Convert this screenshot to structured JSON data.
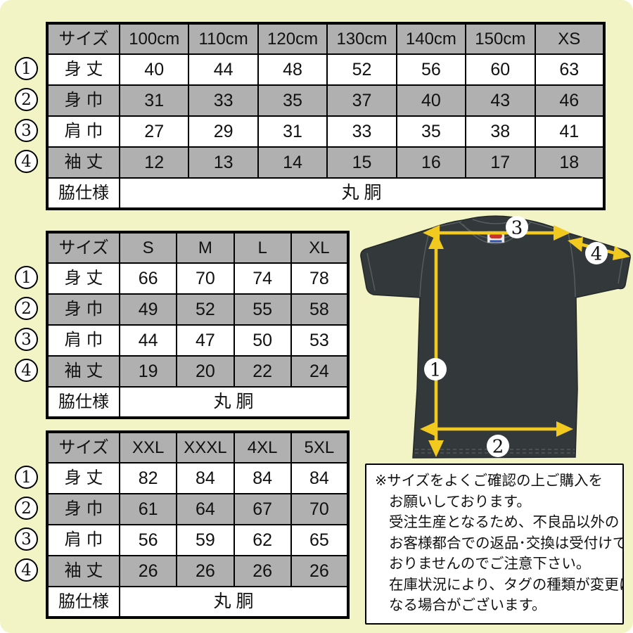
{
  "colors": {
    "background": "#f3f4c6",
    "table_gray": "#b0b0b0",
    "border": "#000000",
    "shirt": "#33383b",
    "arrow_yellow": "#f1c91f",
    "marker_fill": "#ffffff",
    "tag_red": "#c8342c",
    "tag_blue": "#2e4fae"
  },
  "tables": [
    {
      "name": "size-table-kids",
      "header": [
        "サイズ",
        "100cm",
        "110cm",
        "120cm",
        "130cm",
        "140cm",
        "150cm",
        "XS"
      ],
      "rows": [
        {
          "marker": "1",
          "label": "身 丈",
          "values": [
            "40",
            "44",
            "48",
            "52",
            "56",
            "60",
            "63"
          ]
        },
        {
          "marker": "2",
          "label": "身 巾",
          "values": [
            "31",
            "33",
            "35",
            "37",
            "40",
            "43",
            "46"
          ]
        },
        {
          "marker": "3",
          "label": "肩 巾",
          "values": [
            "27",
            "29",
            "31",
            "33",
            "35",
            "38",
            "41"
          ]
        },
        {
          "marker": "4",
          "label": "袖 丈",
          "values": [
            "12",
            "13",
            "14",
            "15",
            "16",
            "17",
            "18"
          ]
        }
      ],
      "footer": {
        "label": "脇仕様",
        "value": "丸 胴"
      }
    },
    {
      "name": "size-table-s-xl",
      "header": [
        "サイズ",
        "S",
        "M",
        "L",
        "XL"
      ],
      "rows": [
        {
          "marker": "1",
          "label": "身 丈",
          "values": [
            "66",
            "70",
            "74",
            "78"
          ]
        },
        {
          "marker": "2",
          "label": "身 巾",
          "values": [
            "49",
            "52",
            "55",
            "58"
          ]
        },
        {
          "marker": "3",
          "label": "肩 巾",
          "values": [
            "44",
            "47",
            "50",
            "53"
          ]
        },
        {
          "marker": "4",
          "label": "袖 丈",
          "values": [
            "19",
            "20",
            "22",
            "24"
          ]
        }
      ],
      "footer": {
        "label": "脇仕様",
        "value": "丸 胴"
      }
    },
    {
      "name": "size-table-xxl-5xl",
      "header": [
        "サイズ",
        "XXL",
        "XXXL",
        "4XL",
        "5XL"
      ],
      "rows": [
        {
          "marker": "1",
          "label": "身 丈",
          "values": [
            "82",
            "84",
            "84",
            "84"
          ]
        },
        {
          "marker": "2",
          "label": "身 巾",
          "values": [
            "61",
            "64",
            "67",
            "70"
          ]
        },
        {
          "marker": "3",
          "label": "肩 巾",
          "values": [
            "56",
            "59",
            "62",
            "65"
          ]
        },
        {
          "marker": "4",
          "label": "袖 丈",
          "values": [
            "26",
            "26",
            "26",
            "26"
          ]
        }
      ],
      "footer": {
        "label": "脇仕様",
        "value": "丸 胴"
      }
    }
  ],
  "diagram": {
    "markers": [
      "1",
      "2",
      "3",
      "4"
    ]
  },
  "notice": {
    "lines": [
      "※サイズをよくご確認の上ご購入を",
      "お願いしております。",
      "受注生産となるため、不良品以外の",
      "お客様都合での返品･交換は受付けて",
      "おりませんのでご注意下さい。",
      "在庫状況により、タグの種類が変更に",
      "なる場合がございます。"
    ]
  }
}
